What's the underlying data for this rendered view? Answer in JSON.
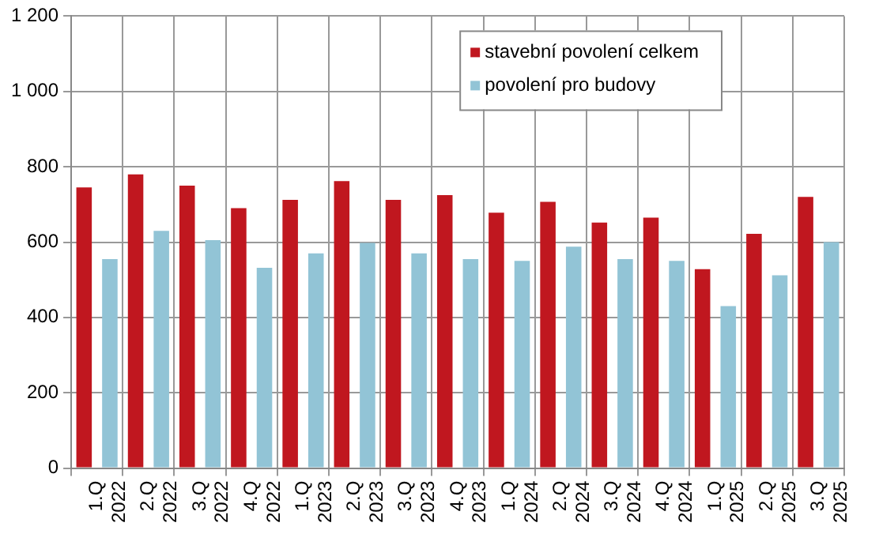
{
  "chart_data": {
    "type": "bar",
    "categories": [
      "1.Q 2022",
      "2.Q 2022",
      "3.Q 2022",
      "4.Q 2022",
      "1.Q 2023",
      "2.Q 2023",
      "3.Q 2023",
      "4.Q 2023",
      "1.Q 2024",
      "2.Q 2024",
      "3.Q 2024",
      "4.Q 2024",
      "1.Q 2025",
      "2.Q 2025",
      "3.Q 2025"
    ],
    "series": [
      {
        "name": "stavební povolení celkem",
        "color": "#c0171f",
        "values": [
          745,
          780,
          750,
          690,
          712,
          762,
          712,
          725,
          678,
          707,
          652,
          665,
          528,
          622,
          720
        ]
      },
      {
        "name": "povolení pro budovy",
        "color": "#92c4d6",
        "values": [
          555,
          630,
          605,
          532,
          570,
          598,
          570,
          555,
          550,
          588,
          555,
          550,
          430,
          512,
          600
        ]
      }
    ],
    "ylim": [
      0,
      1200
    ],
    "yticks": [
      {
        "value": 0,
        "label": "0"
      },
      {
        "value": 200,
        "label": "200"
      },
      {
        "value": 400,
        "label": "400"
      },
      {
        "value": 600,
        "label": "600"
      },
      {
        "value": 800,
        "label": "800"
      },
      {
        "value": 1000,
        "label": "1 000"
      },
      {
        "value": 1200,
        "label": "1 200"
      }
    ],
    "grid": true,
    "legend": "top right"
  }
}
